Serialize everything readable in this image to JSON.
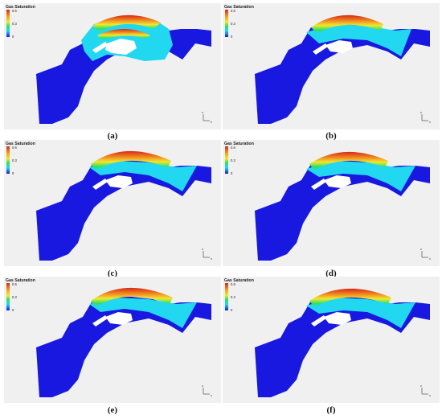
{
  "colorbar": {
    "title": "Gas Saturation",
    "ticks": [
      "0.6",
      "0.3",
      "0"
    ]
  },
  "axes": {
    "z": "z",
    "x": "x"
  },
  "panels": [
    {
      "label": "(a)"
    },
    {
      "label": "(b)"
    },
    {
      "label": "(c)"
    },
    {
      "label": "(d)"
    },
    {
      "label": "(e)"
    },
    {
      "label": "(f)"
    }
  ],
  "colors": {
    "background": "#f0f0f0",
    "reservoir": "#1818e0",
    "cyan": "#22d8f0",
    "green": "#30e060",
    "yellow": "#f0e830",
    "orange": "#f08a20",
    "red": "#d82818"
  }
}
